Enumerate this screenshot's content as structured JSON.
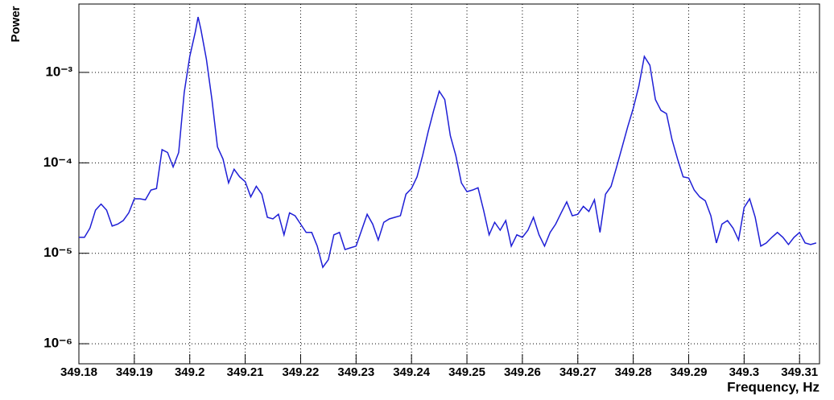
{
  "chart_data": {
    "type": "line",
    "log_y": true,
    "grid": true,
    "x_label": "Frequency, Hz",
    "y_label": "Power",
    "xlim": [
      349.18,
      349.3136
    ],
    "ylim": [
      6e-07,
      0.0057
    ],
    "xticks": [
      349.18,
      349.19,
      349.2,
      349.21,
      349.22,
      349.23,
      349.24,
      349.25,
      349.26,
      349.27,
      349.28,
      349.29,
      349.3,
      349.31
    ],
    "yticks": [
      {
        "value": 1e-06,
        "label": "10⁻⁶"
      },
      {
        "value": 1e-05,
        "label": "10⁻⁵"
      },
      {
        "value": 0.0001,
        "label": "10⁻⁴"
      },
      {
        "value": 0.001,
        "label": "10⁻³"
      }
    ],
    "x": [
      349.18,
      349.181,
      349.182,
      349.183,
      349.184,
      349.185,
      349.186,
      349.187,
      349.188,
      349.189,
      349.19,
      349.191,
      349.192,
      349.193,
      349.194,
      349.195,
      349.196,
      349.197,
      349.198,
      349.199,
      349.2,
      349.201,
      349.2015,
      349.202,
      349.203,
      349.204,
      349.205,
      349.206,
      349.207,
      349.208,
      349.209,
      349.21,
      349.211,
      349.212,
      349.213,
      349.214,
      349.215,
      349.216,
      349.217,
      349.218,
      349.219,
      349.22,
      349.221,
      349.222,
      349.223,
      349.224,
      349.225,
      349.226,
      349.227,
      349.228,
      349.229,
      349.23,
      349.231,
      349.232,
      349.233,
      349.234,
      349.235,
      349.236,
      349.237,
      349.238,
      349.239,
      349.24,
      349.241,
      349.242,
      349.243,
      349.244,
      349.245,
      349.246,
      349.247,
      349.248,
      349.249,
      349.25,
      349.251,
      349.252,
      349.253,
      349.254,
      349.255,
      349.256,
      349.257,
      349.258,
      349.259,
      349.26,
      349.261,
      349.262,
      349.263,
      349.264,
      349.265,
      349.266,
      349.267,
      349.268,
      349.269,
      349.27,
      349.271,
      349.272,
      349.273,
      349.274,
      349.275,
      349.276,
      349.277,
      349.278,
      349.279,
      349.28,
      349.281,
      349.282,
      349.283,
      349.284,
      349.285,
      349.286,
      349.287,
      349.288,
      349.289,
      349.29,
      349.291,
      349.292,
      349.293,
      349.294,
      349.295,
      349.296,
      349.297,
      349.298,
      349.299,
      349.3,
      349.301,
      349.302,
      349.303,
      349.304,
      349.305,
      349.306,
      349.307,
      349.308,
      349.309,
      349.31,
      349.311,
      349.312,
      349.313
    ],
    "series": [
      {
        "name": "Power",
        "color": "#1f1fd6",
        "values": [
          1.5e-05,
          1.5e-05,
          1.9e-05,
          3e-05,
          3.5e-05,
          3e-05,
          2e-05,
          2.1e-05,
          2.3e-05,
          2.8e-05,
          4e-05,
          4e-05,
          3.9e-05,
          5e-05,
          5.2e-05,
          0.00014,
          0.00013,
          9e-05,
          0.00013,
          0.0006,
          0.0015,
          0.0028,
          0.0041,
          0.003,
          0.0014,
          0.0005,
          0.00015,
          0.00011,
          6e-05,
          8.5e-05,
          7e-05,
          6.2e-05,
          4.2e-05,
          5.5e-05,
          4.5e-05,
          2.5e-05,
          2.4e-05,
          2.7e-05,
          1.6e-05,
          2.8e-05,
          2.6e-05,
          2.1e-05,
          1.7e-05,
          1.7e-05,
          1.2e-05,
          7e-06,
          8.5e-06,
          1.6e-05,
          1.7e-05,
          1.1e-05,
          1.15e-05,
          1.2e-05,
          1.8e-05,
          2.7e-05,
          2.1e-05,
          1.4e-05,
          2.2e-05,
          2.4e-05,
          2.5e-05,
          2.6e-05,
          4.5e-05,
          5.2e-05,
          7e-05,
          0.00012,
          0.00022,
          0.00038,
          0.00062,
          0.0005,
          0.0002,
          0.00012,
          6e-05,
          4.8e-05,
          5e-05,
          5.3e-05,
          3e-05,
          1.6e-05,
          2.2e-05,
          1.8e-05,
          2.3e-05,
          1.2e-05,
          1.6e-05,
          1.5e-05,
          1.8e-05,
          2.5e-05,
          1.6e-05,
          1.2e-05,
          1.7e-05,
          2.1e-05,
          2.8e-05,
          3.7e-05,
          2.6e-05,
          2.7e-05,
          3.3e-05,
          2.9e-05,
          3.9e-05,
          1.7e-05,
          4.5e-05,
          5.5e-05,
          9e-05,
          0.00015,
          0.00025,
          0.0004,
          0.0007,
          0.0015,
          0.0012,
          0.0005,
          0.00038,
          0.00035,
          0.00018,
          0.00011,
          7e-05,
          6.8e-05,
          5e-05,
          4.2e-05,
          3.8e-05,
          2.6e-05,
          1.3e-05,
          2.1e-05,
          2.3e-05,
          1.9e-05,
          1.4e-05,
          3.2e-05,
          4e-05,
          2.5e-05,
          1.2e-05,
          1.3e-05,
          1.5e-05,
          1.7e-05,
          1.5e-05,
          1.25e-05,
          1.5e-05,
          1.7e-05,
          1.3e-05,
          1.25e-05,
          1.3e-05
        ]
      }
    ]
  }
}
